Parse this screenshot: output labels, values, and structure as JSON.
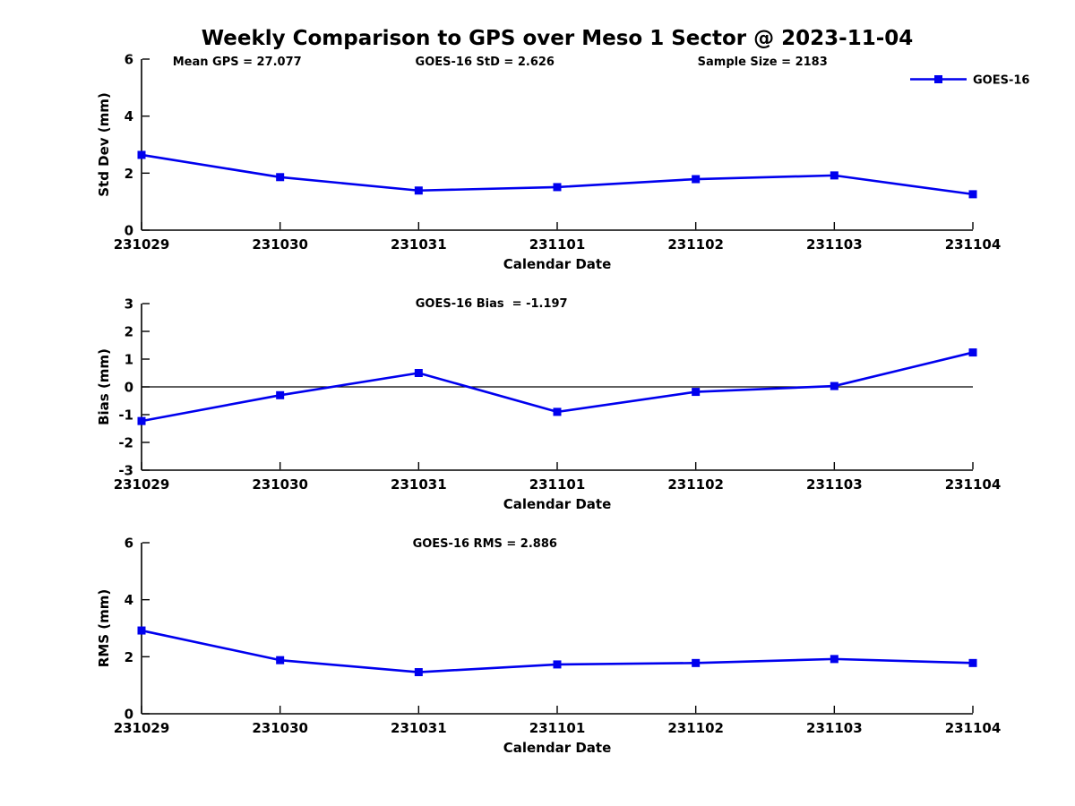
{
  "figure_title": "Weekly Comparison to GPS over Meso 1 Sector @ 2023-11-04",
  "legend": {
    "label": "GOES-16"
  },
  "colors": {
    "series_line": "#0000EE",
    "axis": "#000000",
    "zero_line": "#000000",
    "background": "#FFFFFF"
  },
  "chart_data": [
    {
      "type": "line",
      "series_name": "GOES-16",
      "annotations": [
        "Mean GPS = 27.077",
        "GOES-16 StD = 2.626",
        "Sample Size = 2183"
      ],
      "categories": [
        "231029",
        "231030",
        "231031",
        "231101",
        "231102",
        "231103",
        "231104"
      ],
      "values": [
        2.64,
        1.86,
        1.39,
        1.51,
        1.79,
        1.92,
        1.26
      ],
      "xlabel": "Calendar Date",
      "ylabel": "Std Dev (mm)",
      "ylim": [
        0,
        6
      ],
      "yticks": [
        0,
        2,
        4,
        6
      ],
      "grid": false,
      "zero_line": false,
      "legend_position": "top-right",
      "marker": "square"
    },
    {
      "type": "line",
      "series_name": "GOES-16",
      "annotations": [
        "GOES-16 Bias  = -1.197"
      ],
      "categories": [
        "231029",
        "231030",
        "231031",
        "231101",
        "231102",
        "231103",
        "231104"
      ],
      "values": [
        -1.23,
        -0.3,
        0.5,
        -0.9,
        -0.18,
        0.03,
        1.24
      ],
      "xlabel": "Calendar Date",
      "ylabel": "Bias (mm)",
      "ylim": [
        -3,
        3
      ],
      "yticks": [
        -3,
        -2,
        -1,
        0,
        1,
        2,
        3
      ],
      "grid": false,
      "zero_line": true,
      "marker": "square"
    },
    {
      "type": "line",
      "series_name": "GOES-16",
      "annotations": [
        "GOES-16 RMS = 2.886"
      ],
      "categories": [
        "231029",
        "231030",
        "231031",
        "231101",
        "231102",
        "231103",
        "231104"
      ],
      "values": [
        2.92,
        1.88,
        1.46,
        1.73,
        1.78,
        1.92,
        1.78
      ],
      "xlabel": "Calendar Date",
      "ylabel": "RMS (mm)",
      "ylim": [
        0,
        6
      ],
      "yticks": [
        0,
        2,
        4,
        6
      ],
      "grid": false,
      "zero_line": false,
      "marker": "square"
    }
  ]
}
